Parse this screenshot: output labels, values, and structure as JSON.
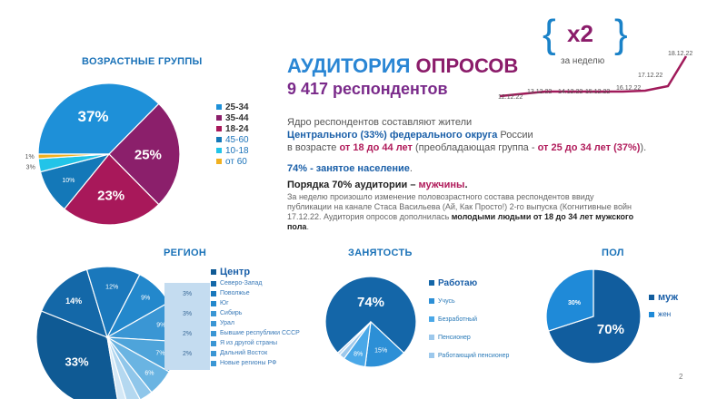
{
  "headline": {
    "title_part1": "АУДИТОРИЯ",
    "title_part2": "ОПРОСОВ",
    "respondents": "9 417 респондентов"
  },
  "growth": {
    "multiplier": "x2",
    "period": "за неделю",
    "dates": [
      "12.12.22",
      "13.12.22",
      "14.12.22",
      "15.12.22",
      "16.12.22",
      "17.12.22",
      "18.12.22"
    ]
  },
  "description": {
    "line1": "Ядро респондентов составляют жители",
    "line2_highlight": "Центрального (33%) федерального округа",
    "line2_rest": " России",
    "line3_pre": "в возрасте ",
    "line3_highlight": "от 18 до 44 лет",
    "line3_mid": " (преобладающая группа - ",
    "line3_highlight2": "от 25 до 34 лет (37%)",
    "line3_end": ").",
    "employed": "74% - занятое население",
    "employed_dot": ".",
    "men_pre": "Порядка 70% аудитории – ",
    "men_highlight": "мужчины",
    "men_dot": ".",
    "note_line1": "За неделю произошло изменение половозрастного состава респондентов ввиду",
    "note_line2": "публикации на канале Стаса Васильева (Ай, Как Просто!) 2-го выпуска (Когнитивные войн",
    "note_line3_pre": "17.12.22. Аудитория опросов дополнилась ",
    "note_line3_bold": "молодыми людьми от 18 до 34 лет мужского",
    "note_line4": "пола",
    "note_line4_dot": "."
  },
  "page_number": "2",
  "chart_data": [
    {
      "type": "pie",
      "title": "ВОЗРАСТНЫЕ ГРУППЫ",
      "categories": [
        "25-34",
        "35-44",
        "18-24",
        "45-60",
        "10-18",
        "от 60"
      ],
      "values": [
        37,
        25,
        23,
        10,
        3,
        1
      ],
      "labels": [
        "37%",
        "25%",
        "23%",
        "10%",
        "3%",
        "1%"
      ],
      "colors": [
        "#1e90d8",
        "#8b1f6b",
        "#a8185a",
        "#1478b8",
        "#22c4e8",
        "#f0b020"
      ]
    },
    {
      "type": "pie",
      "title": "РЕГИОН",
      "categories": [
        "Центр",
        "Северо-Запад",
        "Поволжье",
        "Юг",
        "Сибирь",
        "Урал",
        "Бывшие республики СССР",
        "Я из другой страны",
        "Дальний Восток",
        "Новые регионы РФ"
      ],
      "values": [
        33,
        14,
        12,
        9,
        9,
        7,
        6,
        3,
        3,
        2
      ],
      "labels": [
        "33%",
        "14%",
        "12%",
        "9%",
        "9%",
        "7%",
        "6%",
        "3%",
        "3%",
        "2%"
      ],
      "table_values": [
        "3%",
        "3%",
        "2%",
        "2%"
      ],
      "colors": [
        "#0f5a94",
        "#1468a8",
        "#1a78bc",
        "#2388cc",
        "#3a96d4",
        "#4ea4da",
        "#6ab4e2",
        "#8fc6ea",
        "#b4d8f0",
        "#d4e8f6"
      ]
    },
    {
      "type": "pie",
      "title": "ЗАНЯТОСТЬ",
      "categories": [
        "Работаю",
        "Учусь",
        "Безработный",
        "Пенсионер",
        "Работающий пенсионер"
      ],
      "values": [
        74,
        15,
        8,
        2,
        1
      ],
      "labels": [
        "74%",
        "15%",
        "8%"
      ],
      "colors": [
        "#1466a8",
        "#2c8fd6",
        "#4aa8e8",
        "#9cc8ec",
        "#c4dcf2"
      ]
    },
    {
      "type": "pie",
      "title": "ПОЛ",
      "categories": [
        "муж",
        "жен"
      ],
      "values": [
        70,
        30
      ],
      "labels": [
        "70%",
        "30%"
      ],
      "colors": [
        "#115d9e",
        "#1f8ad8"
      ]
    }
  ]
}
